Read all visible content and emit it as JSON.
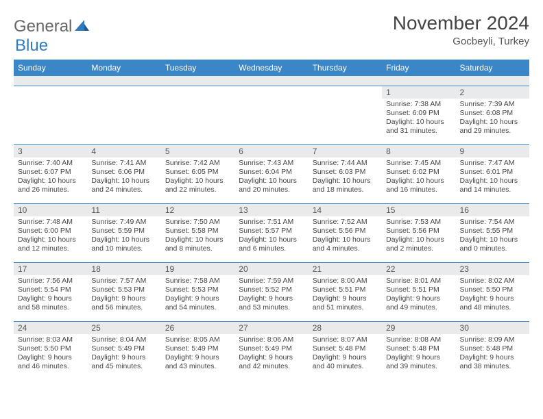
{
  "logo": {
    "word1": "General",
    "word2": "Blue",
    "shape_color": "#2f7bbf"
  },
  "title": {
    "month": "November 2024",
    "location": "Gocbeyli, Turkey"
  },
  "colors": {
    "header_bg": "#3b86c6",
    "header_text": "#ffffff",
    "cell_border": "#3b86c6",
    "daynum_bg": "#e9eaec",
    "text": "#444444"
  },
  "weekdays": [
    "Sunday",
    "Monday",
    "Tuesday",
    "Wednesday",
    "Thursday",
    "Friday",
    "Saturday"
  ],
  "weeks": [
    [
      null,
      null,
      null,
      null,
      null,
      {
        "n": "1",
        "sr": "Sunrise: 7:38 AM",
        "ss": "Sunset: 6:09 PM",
        "d1": "Daylight: 10 hours",
        "d2": "and 31 minutes."
      },
      {
        "n": "2",
        "sr": "Sunrise: 7:39 AM",
        "ss": "Sunset: 6:08 PM",
        "d1": "Daylight: 10 hours",
        "d2": "and 29 minutes."
      }
    ],
    [
      {
        "n": "3",
        "sr": "Sunrise: 7:40 AM",
        "ss": "Sunset: 6:07 PM",
        "d1": "Daylight: 10 hours",
        "d2": "and 26 minutes."
      },
      {
        "n": "4",
        "sr": "Sunrise: 7:41 AM",
        "ss": "Sunset: 6:06 PM",
        "d1": "Daylight: 10 hours",
        "d2": "and 24 minutes."
      },
      {
        "n": "5",
        "sr": "Sunrise: 7:42 AM",
        "ss": "Sunset: 6:05 PM",
        "d1": "Daylight: 10 hours",
        "d2": "and 22 minutes."
      },
      {
        "n": "6",
        "sr": "Sunrise: 7:43 AM",
        "ss": "Sunset: 6:04 PM",
        "d1": "Daylight: 10 hours",
        "d2": "and 20 minutes."
      },
      {
        "n": "7",
        "sr": "Sunrise: 7:44 AM",
        "ss": "Sunset: 6:03 PM",
        "d1": "Daylight: 10 hours",
        "d2": "and 18 minutes."
      },
      {
        "n": "8",
        "sr": "Sunrise: 7:45 AM",
        "ss": "Sunset: 6:02 PM",
        "d1": "Daylight: 10 hours",
        "d2": "and 16 minutes."
      },
      {
        "n": "9",
        "sr": "Sunrise: 7:47 AM",
        "ss": "Sunset: 6:01 PM",
        "d1": "Daylight: 10 hours",
        "d2": "and 14 minutes."
      }
    ],
    [
      {
        "n": "10",
        "sr": "Sunrise: 7:48 AM",
        "ss": "Sunset: 6:00 PM",
        "d1": "Daylight: 10 hours",
        "d2": "and 12 minutes."
      },
      {
        "n": "11",
        "sr": "Sunrise: 7:49 AM",
        "ss": "Sunset: 5:59 PM",
        "d1": "Daylight: 10 hours",
        "d2": "and 10 minutes."
      },
      {
        "n": "12",
        "sr": "Sunrise: 7:50 AM",
        "ss": "Sunset: 5:58 PM",
        "d1": "Daylight: 10 hours",
        "d2": "and 8 minutes."
      },
      {
        "n": "13",
        "sr": "Sunrise: 7:51 AM",
        "ss": "Sunset: 5:57 PM",
        "d1": "Daylight: 10 hours",
        "d2": "and 6 minutes."
      },
      {
        "n": "14",
        "sr": "Sunrise: 7:52 AM",
        "ss": "Sunset: 5:56 PM",
        "d1": "Daylight: 10 hours",
        "d2": "and 4 minutes."
      },
      {
        "n": "15",
        "sr": "Sunrise: 7:53 AM",
        "ss": "Sunset: 5:56 PM",
        "d1": "Daylight: 10 hours",
        "d2": "and 2 minutes."
      },
      {
        "n": "16",
        "sr": "Sunrise: 7:54 AM",
        "ss": "Sunset: 5:55 PM",
        "d1": "Daylight: 10 hours",
        "d2": "and 0 minutes."
      }
    ],
    [
      {
        "n": "17",
        "sr": "Sunrise: 7:56 AM",
        "ss": "Sunset: 5:54 PM",
        "d1": "Daylight: 9 hours",
        "d2": "and 58 minutes."
      },
      {
        "n": "18",
        "sr": "Sunrise: 7:57 AM",
        "ss": "Sunset: 5:53 PM",
        "d1": "Daylight: 9 hours",
        "d2": "and 56 minutes."
      },
      {
        "n": "19",
        "sr": "Sunrise: 7:58 AM",
        "ss": "Sunset: 5:53 PM",
        "d1": "Daylight: 9 hours",
        "d2": "and 54 minutes."
      },
      {
        "n": "20",
        "sr": "Sunrise: 7:59 AM",
        "ss": "Sunset: 5:52 PM",
        "d1": "Daylight: 9 hours",
        "d2": "and 53 minutes."
      },
      {
        "n": "21",
        "sr": "Sunrise: 8:00 AM",
        "ss": "Sunset: 5:51 PM",
        "d1": "Daylight: 9 hours",
        "d2": "and 51 minutes."
      },
      {
        "n": "22",
        "sr": "Sunrise: 8:01 AM",
        "ss": "Sunset: 5:51 PM",
        "d1": "Daylight: 9 hours",
        "d2": "and 49 minutes."
      },
      {
        "n": "23",
        "sr": "Sunrise: 8:02 AM",
        "ss": "Sunset: 5:50 PM",
        "d1": "Daylight: 9 hours",
        "d2": "and 48 minutes."
      }
    ],
    [
      {
        "n": "24",
        "sr": "Sunrise: 8:03 AM",
        "ss": "Sunset: 5:50 PM",
        "d1": "Daylight: 9 hours",
        "d2": "and 46 minutes."
      },
      {
        "n": "25",
        "sr": "Sunrise: 8:04 AM",
        "ss": "Sunset: 5:49 PM",
        "d1": "Daylight: 9 hours",
        "d2": "and 45 minutes."
      },
      {
        "n": "26",
        "sr": "Sunrise: 8:05 AM",
        "ss": "Sunset: 5:49 PM",
        "d1": "Daylight: 9 hours",
        "d2": "and 43 minutes."
      },
      {
        "n": "27",
        "sr": "Sunrise: 8:06 AM",
        "ss": "Sunset: 5:49 PM",
        "d1": "Daylight: 9 hours",
        "d2": "and 42 minutes."
      },
      {
        "n": "28",
        "sr": "Sunrise: 8:07 AM",
        "ss": "Sunset: 5:48 PM",
        "d1": "Daylight: 9 hours",
        "d2": "and 40 minutes."
      },
      {
        "n": "29",
        "sr": "Sunrise: 8:08 AM",
        "ss": "Sunset: 5:48 PM",
        "d1": "Daylight: 9 hours",
        "d2": "and 39 minutes."
      },
      {
        "n": "30",
        "sr": "Sunrise: 8:09 AM",
        "ss": "Sunset: 5:48 PM",
        "d1": "Daylight: 9 hours",
        "d2": "and 38 minutes."
      }
    ]
  ]
}
